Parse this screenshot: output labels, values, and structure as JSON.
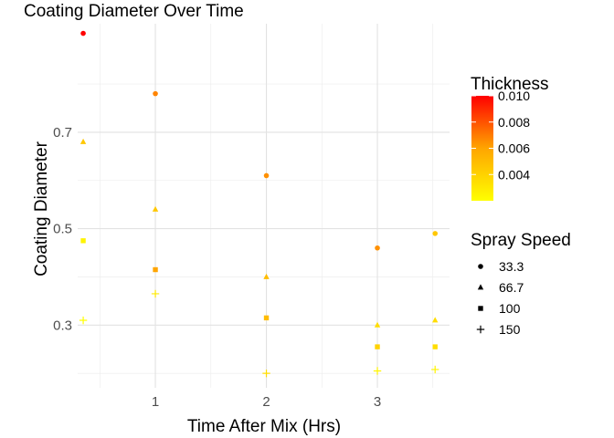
{
  "chart_data": {
    "type": "scatter",
    "title": "Coating Diameter Over Time",
    "xlabel": "Time After Mix (Hrs)",
    "ylabel": "Coating Diameter",
    "xlim": [
      0.3,
      3.65
    ],
    "ylim": [
      0.17,
      0.925
    ],
    "x_ticks": [
      1,
      2,
      3
    ],
    "y_ticks": [
      0.3,
      0.5,
      0.7
    ],
    "x_minor": [
      0.5,
      1.5,
      2.5,
      3.5
    ],
    "y_minor": [
      0.2,
      0.4,
      0.6,
      0.8
    ],
    "grid": true,
    "color_legend": {
      "title": "Thickness",
      "min": 0.002,
      "max": 0.01,
      "ticks": [
        0.004,
        0.006,
        0.008,
        0.01
      ],
      "tick_labels": [
        "0.004",
        "0.006",
        "0.008",
        "0.010"
      ],
      "low_color": "#FFFF00",
      "mid_color": "#FFA500",
      "high_color": "#FF0000"
    },
    "shape_legend": {
      "title": "Spray Speed",
      "items": [
        {
          "label": "33.3",
          "shape": "circle"
        },
        {
          "label": "66.7",
          "shape": "triangle"
        },
        {
          "label": "100",
          "shape": "square"
        },
        {
          "label": "150",
          "shape": "plus"
        }
      ]
    },
    "points": [
      {
        "x": 0.35,
        "y": 0.905,
        "speed": "33.3",
        "thickness": 0.0102
      },
      {
        "x": 0.35,
        "y": 0.68,
        "speed": "66.7",
        "thickness": 0.0045
      },
      {
        "x": 0.35,
        "y": 0.475,
        "speed": "100",
        "thickness": 0.0025
      },
      {
        "x": 0.35,
        "y": 0.31,
        "speed": "150",
        "thickness": 0.0015
      },
      {
        "x": 1.0,
        "y": 0.78,
        "speed": "33.3",
        "thickness": 0.0068
      },
      {
        "x": 1.0,
        "y": 0.54,
        "speed": "66.7",
        "thickness": 0.0045
      },
      {
        "x": 1.0,
        "y": 0.415,
        "speed": "100",
        "thickness": 0.006
      },
      {
        "x": 1.0,
        "y": 0.365,
        "speed": "150",
        "thickness": 0.003
      },
      {
        "x": 2.0,
        "y": 0.61,
        "speed": "33.3",
        "thickness": 0.0065
      },
      {
        "x": 2.0,
        "y": 0.4,
        "speed": "66.7",
        "thickness": 0.005
      },
      {
        "x": 2.0,
        "y": 0.315,
        "speed": "100",
        "thickness": 0.005
      },
      {
        "x": 2.0,
        "y": 0.2,
        "speed": "150",
        "thickness": 0.0035
      },
      {
        "x": 3.0,
        "y": 0.46,
        "speed": "33.3",
        "thickness": 0.0065
      },
      {
        "x": 3.0,
        "y": 0.3,
        "speed": "66.7",
        "thickness": 0.0035
      },
      {
        "x": 3.0,
        "y": 0.255,
        "speed": "100",
        "thickness": 0.004
      },
      {
        "x": 3.0,
        "y": 0.205,
        "speed": "150",
        "thickness": 0.0025
      },
      {
        "x": 3.52,
        "y": 0.49,
        "speed": "33.3",
        "thickness": 0.0045
      },
      {
        "x": 3.52,
        "y": 0.31,
        "speed": "66.7",
        "thickness": 0.0035
      },
      {
        "x": 3.52,
        "y": 0.255,
        "speed": "100",
        "thickness": 0.0035
      },
      {
        "x": 3.52,
        "y": 0.208,
        "speed": "150",
        "thickness": 0.0025
      }
    ]
  }
}
